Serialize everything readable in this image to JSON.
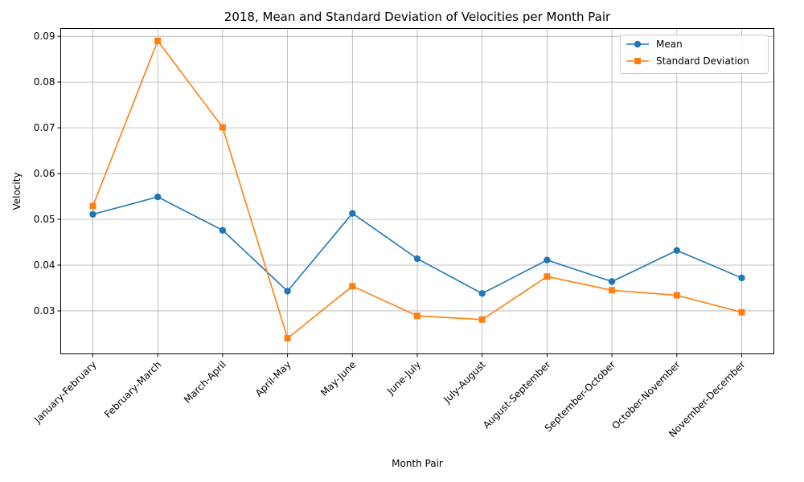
{
  "chart_data": {
    "type": "line",
    "title": "2018, Mean and Standard Deviation of Velocities per Month Pair",
    "xlabel": "Month Pair",
    "ylabel": "Velocity",
    "categories": [
      "January-February",
      "February-March",
      "March-April",
      "April-May",
      "May-June",
      "June-July",
      "July-August",
      "August-September",
      "September-October",
      "October-November",
      "November-December"
    ],
    "ylim": [
      0.0206,
      0.0917
    ],
    "yticks": [
      "0.03",
      "0.04",
      "0.05",
      "0.06",
      "0.07",
      "0.08",
      "0.09"
    ],
    "grid": true,
    "legend_position": "top-right",
    "series": [
      {
        "name": "Mean",
        "color": "#1f77b4",
        "marker": "circle",
        "values": [
          0.0511,
          0.0549,
          0.0476,
          0.0343,
          0.0513,
          0.0414,
          0.0338,
          0.0411,
          0.0364,
          0.0432,
          0.0372
        ]
      },
      {
        "name": "Standard Deviation",
        "color": "#ff7f0e",
        "marker": "square",
        "values": [
          0.0529,
          0.089,
          0.0701,
          0.024,
          0.0354,
          0.0289,
          0.0281,
          0.0375,
          0.0345,
          0.0334,
          0.0297
        ]
      }
    ]
  }
}
